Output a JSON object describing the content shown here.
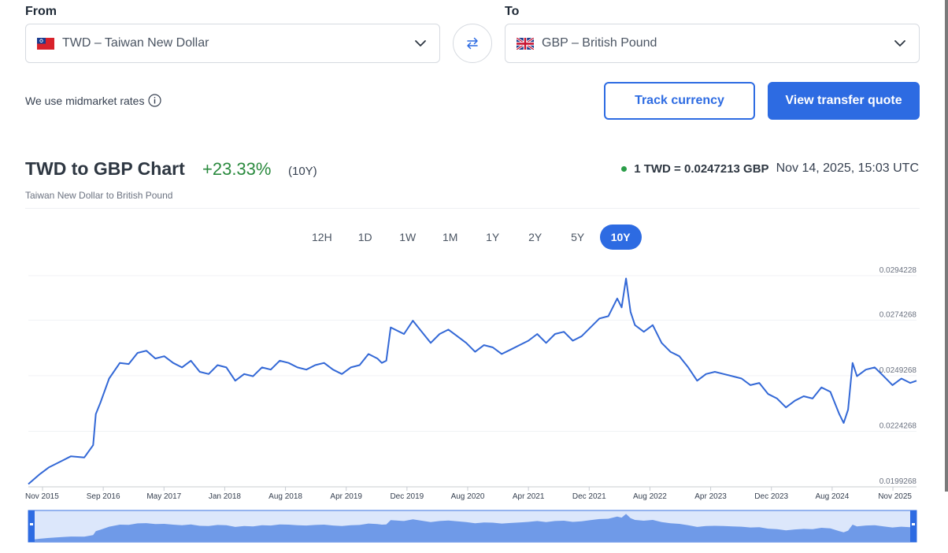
{
  "from": {
    "label": "From",
    "value": "TWD – Taiwan New Dollar",
    "flag_icon": "taiwan-flag-icon"
  },
  "to": {
    "label": "To",
    "value": "GBP – British Pound",
    "flag_icon": "uk-flag-icon"
  },
  "swap_icon": "swap-arrows-icon",
  "midmarket_text": "We use midmarket rates",
  "buttons": {
    "track": "Track currency",
    "quote": "View transfer quote"
  },
  "header": {
    "title": "TWD to GBP Chart",
    "change": "+23.33%",
    "period": "(10Y)",
    "subtitle": "Taiwan New Dollar to British Pound",
    "rate": "1 TWD = 0.0247213 GBP",
    "timestamp": "Nov 14, 2025, 15:03 UTC"
  },
  "tabs": [
    {
      "label": "12H",
      "active": false
    },
    {
      "label": "1D",
      "active": false
    },
    {
      "label": "1W",
      "active": false
    },
    {
      "label": "1M",
      "active": false
    },
    {
      "label": "1Y",
      "active": false
    },
    {
      "label": "2Y",
      "active": false
    },
    {
      "label": "5Y",
      "active": false
    },
    {
      "label": "10Y",
      "active": true
    }
  ],
  "colors": {
    "accent": "#2d6be2",
    "line": "#3368d6",
    "positive": "#2a8a3e",
    "navigator_fill": "#6f9ae8"
  },
  "chart_data": {
    "type": "line",
    "x_tick_labels": [
      "Nov 2015",
      "Sep 2016",
      "May 2017",
      "Jan 2018",
      "Aug 2018",
      "Apr 2019",
      "Dec 2019",
      "Aug 2020",
      "Apr 2021",
      "Dec 2021",
      "Aug 2022",
      "Apr 2023",
      "Dec 2023",
      "Aug 2024",
      "Nov 2025"
    ],
    "y_tick_labels": [
      "0.0294228",
      "0.0274268",
      "0.0249268",
      "0.0224268",
      "0.0199268"
    ],
    "y_ticks": [
      0.0294228,
      0.0274268,
      0.0249268,
      0.0224268,
      0.0199268
    ],
    "ylim": [
      0.0199268,
      0.0294228
    ],
    "grid": true,
    "x": [
      2015.87,
      2016.0,
      2016.1,
      2016.25,
      2016.35,
      2016.5,
      2016.6,
      2016.63,
      2016.68,
      2016.78,
      2016.9,
      2017.0,
      2017.1,
      2017.2,
      2017.3,
      2017.4,
      2017.5,
      2017.6,
      2017.7,
      2017.8,
      2017.9,
      2018.0,
      2018.1,
      2018.2,
      2018.3,
      2018.4,
      2018.5,
      2018.6,
      2018.7,
      2018.8,
      2018.9,
      2019.0,
      2019.1,
      2019.2,
      2019.3,
      2019.4,
      2019.5,
      2019.6,
      2019.7,
      2019.8,
      2019.85,
      2019.9,
      2019.95,
      2020.1,
      2020.2,
      2020.3,
      2020.4,
      2020.5,
      2020.6,
      2020.7,
      2020.8,
      2020.9,
      2021.0,
      2021.1,
      2021.2,
      2021.3,
      2021.4,
      2021.5,
      2021.6,
      2021.7,
      2021.8,
      2021.9,
      2022.0,
      2022.1,
      2022.2,
      2022.3,
      2022.4,
      2022.5,
      2022.55,
      2022.6,
      2022.65,
      2022.7,
      2022.8,
      2022.9,
      2023.0,
      2023.1,
      2023.2,
      2023.3,
      2023.4,
      2023.5,
      2023.6,
      2023.7,
      2023.8,
      2023.9,
      2024.0,
      2024.1,
      2024.2,
      2024.3,
      2024.4,
      2024.5,
      2024.6,
      2024.7,
      2024.8,
      2024.9,
      2025.0,
      2025.05,
      2025.1,
      2025.15,
      2025.2,
      2025.3,
      2025.4,
      2025.5,
      2025.6,
      2025.7,
      2025.8,
      2025.87
    ],
    "series": [
      {
        "values": [
          0.02005,
          0.0205,
          0.0208,
          0.0211,
          0.0213,
          0.02125,
          0.0218,
          0.0232,
          0.0237,
          0.0248,
          0.0255,
          0.02545,
          0.02595,
          0.02605,
          0.0257,
          0.0258,
          0.0255,
          0.0253,
          0.0256,
          0.0251,
          0.025,
          0.0254,
          0.0253,
          0.0247,
          0.025,
          0.0249,
          0.0253,
          0.0252,
          0.0256,
          0.0255,
          0.0253,
          0.0252,
          0.0254,
          0.0255,
          0.0252,
          0.025,
          0.0253,
          0.0254,
          0.0259,
          0.0257,
          0.0255,
          0.0256,
          0.0271,
          0.0268,
          0.0274,
          0.0269,
          0.0264,
          0.0268,
          0.027,
          0.0267,
          0.0264,
          0.026,
          0.0263,
          0.0262,
          0.0259,
          0.0261,
          0.0263,
          0.0265,
          0.0268,
          0.0264,
          0.0268,
          0.0269,
          0.0265,
          0.0267,
          0.0271,
          0.0275,
          0.0276,
          0.0284,
          0.028,
          0.0293,
          0.0278,
          0.0272,
          0.0269,
          0.0272,
          0.0264,
          0.026,
          0.0258,
          0.0253,
          0.0247,
          0.025,
          0.0251,
          0.025,
          0.0249,
          0.0248,
          0.0245,
          0.0246,
          0.0241,
          0.0239,
          0.0235,
          0.0238,
          0.024,
          0.0239,
          0.0244,
          0.0242,
          0.0232,
          0.0228,
          0.0234,
          0.0255,
          0.0249,
          0.0252,
          0.0253,
          0.0249,
          0.0245,
          0.0248,
          0.0246,
          0.0247
        ]
      }
    ]
  }
}
